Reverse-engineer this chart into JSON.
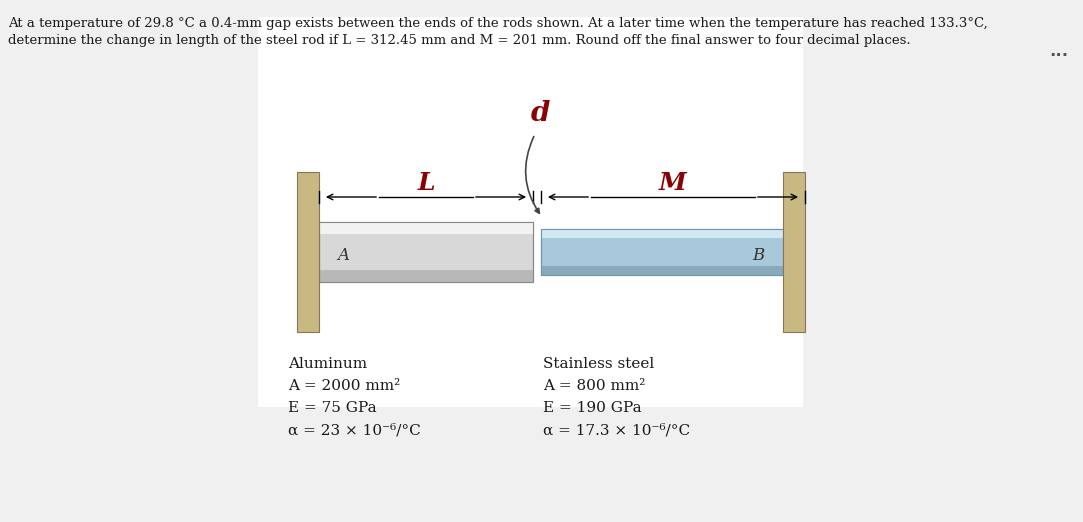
{
  "bg_color": "#f0f0f0",
  "panel_bg": "#ffffff",
  "title_text_line1": "At a temperature of 29.8 °C a 0.4-mm gap exists between the ends of the rods shown. At a later time when the temperature has reached 133.3°C,",
  "title_text_line2": "determine the change in length of the steel rod if L = 312.45 mm and M = 201 mm. Round off the final answer to four decimal places.",
  "dots_text": "...",
  "label_d": "d",
  "label_L": "L",
  "label_M": "M",
  "label_A": "A",
  "label_B": "B",
  "dark_red": "#8B0000",
  "wall_color": "#C8B882",
  "al_rod_color_light": "#E8E8E8",
  "al_rod_color_dark": "#A8A8A8",
  "steel_rod_color_light": "#B8D8E8",
  "steel_rod_color_dark": "#7AAABE",
  "text_color": "#1a1a1a",
  "alum_label": "Aluminum",
  "alum_A": "A = 2000 mm²",
  "alum_E": "E = 75 GPa",
  "alum_alpha": "α = 23 × 10⁻⁶/°C",
  "steel_label": "Stainless steel",
  "steel_A": "A = 800 mm²",
  "steel_E": "E = 190 GPa",
  "steel_alpha": "α = 17.3 × 10⁻⁶/°C"
}
